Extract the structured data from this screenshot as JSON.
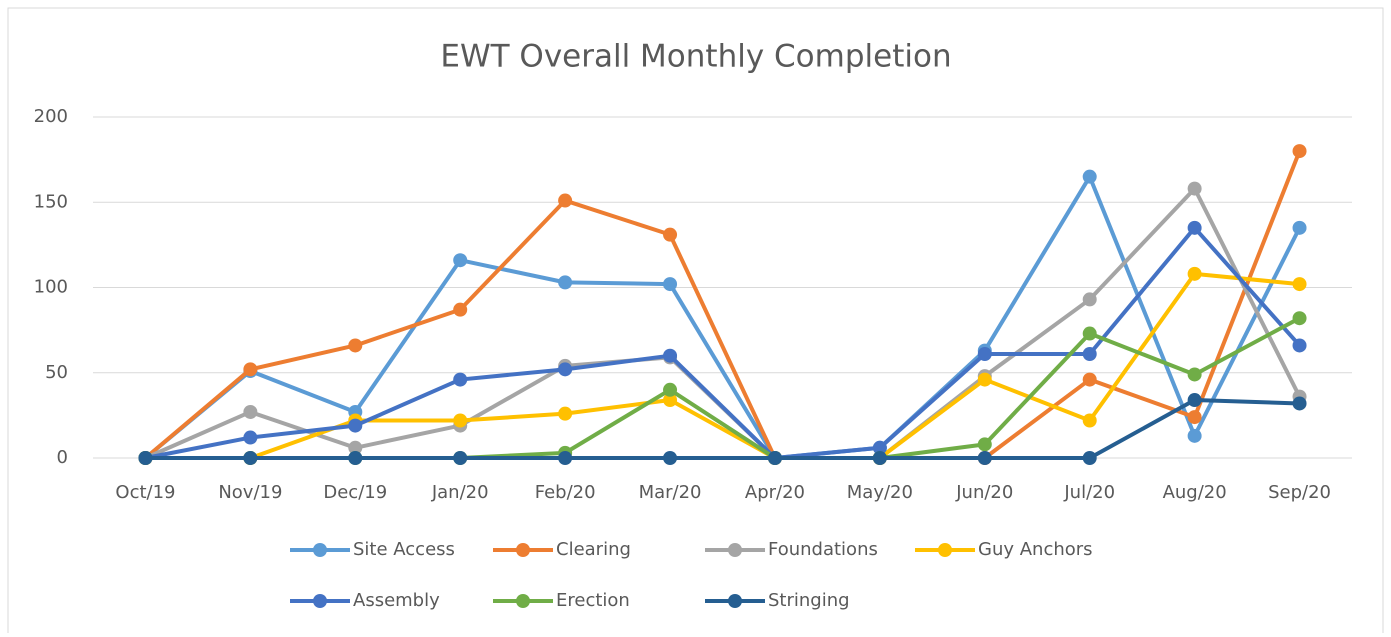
{
  "chart_data": {
    "type": "line",
    "title": "EWT Overall Monthly Completion",
    "categories": [
      "Oct/19",
      "Nov/19",
      "Dec/19",
      "Jan/20",
      "Feb/20",
      "Mar/20",
      "Apr/20",
      "May/20",
      "Jun/20",
      "Jul/20",
      "Aug/20",
      "Sep/20"
    ],
    "series": [
      {
        "name": "Site Access",
        "color": "#5b9bd5",
        "values": [
          0,
          51,
          27,
          116,
          103,
          102,
          0,
          6,
          63,
          165,
          13,
          135
        ]
      },
      {
        "name": "Clearing",
        "color": "#ed7d31",
        "values": [
          0,
          52,
          66,
          87,
          151,
          131,
          0,
          0,
          0,
          46,
          24,
          180
        ]
      },
      {
        "name": "Foundations",
        "color": "#a5a5a5",
        "values": [
          0,
          27,
          6,
          19,
          54,
          59,
          0,
          0,
          48,
          93,
          158,
          36
        ]
      },
      {
        "name": "Guy Anchors",
        "color": "#ffc000",
        "values": [
          0,
          0,
          22,
          22,
          26,
          34,
          0,
          0,
          46,
          22,
          108,
          102
        ]
      },
      {
        "name": "Assembly",
        "color": "#4472c4",
        "values": [
          0,
          12,
          19,
          46,
          52,
          60,
          0,
          6,
          61,
          61,
          135,
          66
        ]
      },
      {
        "name": "Erection",
        "color": "#70ad47",
        "values": [
          0,
          0,
          0,
          0,
          3,
          40,
          0,
          0,
          8,
          73,
          49,
          82
        ]
      },
      {
        "name": "Stringing",
        "color": "#255e91",
        "values": [
          0,
          0,
          0,
          0,
          0,
          0,
          0,
          0,
          0,
          0,
          34,
          32
        ]
      }
    ],
    "ylim": [
      0,
      200
    ],
    "yticks": [
      0,
      50,
      100,
      150,
      200
    ],
    "grid": true,
    "legend": "bottom"
  }
}
